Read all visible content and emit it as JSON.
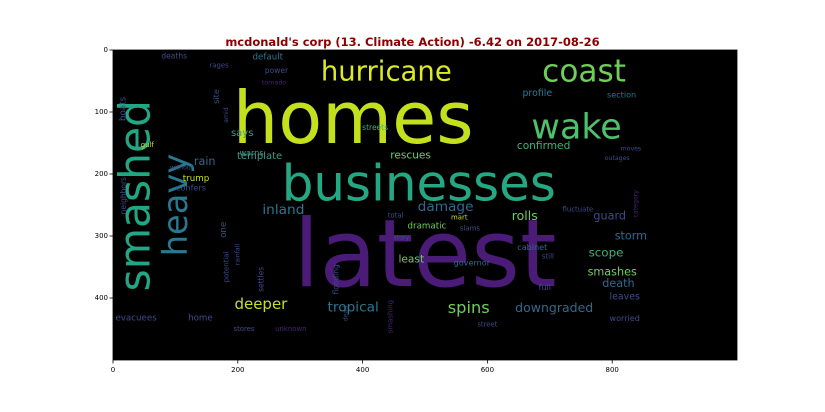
{
  "chart_data": {
    "type": "wordcloud",
    "title": "mcdonald's corp (13. Climate Action) -6.42 on 2017-08-26",
    "xlim": [
      0,
      1000
    ],
    "ylim": [
      500,
      0
    ],
    "xticks": [
      0,
      200,
      400,
      600,
      800
    ],
    "yticks": [
      0,
      100,
      200,
      300,
      400
    ],
    "words": [
      {
        "text": "latest",
        "x": 500,
        "y": 330,
        "size": 150,
        "color": "#4b1c77",
        "rotate": 0
      },
      {
        "text": "homes",
        "x": 385,
        "y": 110,
        "size": 115,
        "color": "#c4e01c",
        "rotate": 0
      },
      {
        "text": "businesses",
        "x": 490,
        "y": 215,
        "size": 80,
        "color": "#24a884",
        "rotate": 0
      },
      {
        "text": "smashed",
        "x": 35,
        "y": 235,
        "size": 68,
        "color": "#22a784",
        "rotate": -90
      },
      {
        "text": "heavy",
        "x": 100,
        "y": 250,
        "size": 54,
        "color": "#2a788e",
        "rotate": -90
      },
      {
        "text": "wake",
        "x": 743,
        "y": 125,
        "size": 56,
        "color": "#4cc26c",
        "rotate": 0
      },
      {
        "text": "coast",
        "x": 755,
        "y": 35,
        "size": 50,
        "color": "#6ece58",
        "rotate": 0
      },
      {
        "text": "hurricane",
        "x": 438,
        "y": 35,
        "size": 44,
        "color": "#ddea21",
        "rotate": 0
      },
      {
        "text": "default",
        "x": 248,
        "y": 12,
        "size": 14,
        "color": "#2a788e",
        "rotate": 0
      },
      {
        "text": "deaths",
        "x": 98,
        "y": 10,
        "size": 12,
        "color": "#3d4d8a",
        "rotate": 0
      },
      {
        "text": "rages",
        "x": 170,
        "y": 25,
        "size": 11,
        "color": "#3d4d8a",
        "rotate": 0
      },
      {
        "text": "power",
        "x": 262,
        "y": 33,
        "size": 12,
        "color": "#3d4d8a",
        "rotate": 0
      },
      {
        "text": "tornado",
        "x": 258,
        "y": 53,
        "size": 10,
        "color": "#482475",
        "rotate": 0
      },
      {
        "text": "site",
        "x": 165,
        "y": 75,
        "size": 13,
        "color": "#3d4d8a",
        "rotate": -90
      },
      {
        "text": "amid",
        "x": 182,
        "y": 105,
        "size": 10,
        "color": "#3d4d8a",
        "rotate": -90
      },
      {
        "text": "boats",
        "x": 17,
        "y": 95,
        "size": 14,
        "color": "#3d4d8a",
        "rotate": -90
      },
      {
        "text": "profile",
        "x": 680,
        "y": 70,
        "size": 15,
        "color": "#2a788e",
        "rotate": 0
      },
      {
        "text": "section",
        "x": 815,
        "y": 72,
        "size": 13,
        "color": "#2a788e",
        "rotate": 0
      },
      {
        "text": "says",
        "x": 207,
        "y": 135,
        "size": 16,
        "color": "#3e9b8a",
        "rotate": 0
      },
      {
        "text": "streets",
        "x": 420,
        "y": 125,
        "size": 12,
        "color": "#35b779",
        "rotate": 0
      },
      {
        "text": "gulf",
        "x": 55,
        "y": 153,
        "size": 11,
        "color": "#c4e01c",
        "rotate": 0
      },
      {
        "text": "moves",
        "x": 830,
        "y": 160,
        "size": 10,
        "color": "#3d4d8a",
        "rotate": 0
      },
      {
        "text": "confirmed",
        "x": 690,
        "y": 155,
        "size": 17,
        "color": "#35b779",
        "rotate": 0
      },
      {
        "text": "rescues",
        "x": 477,
        "y": 170,
        "size": 17,
        "color": "#6ece58",
        "rotate": 0
      },
      {
        "text": "rain",
        "x": 147,
        "y": 180,
        "size": 18,
        "color": "#31688e",
        "rotate": 0
      },
      {
        "text": "template",
        "x": 235,
        "y": 172,
        "size": 16,
        "color": "#3e9b8a",
        "rotate": 0
      },
      {
        "text": "warns",
        "x": 222,
        "y": 165,
        "size": 13,
        "color": "#3e9b8a",
        "rotate": 0
      },
      {
        "text": "outages",
        "x": 808,
        "y": 175,
        "size": 10,
        "color": "#3d4d8a",
        "rotate": 0
      },
      {
        "text": "without",
        "x": 110,
        "y": 190,
        "size": 10,
        "color": "#3d4d8a",
        "rotate": 0
      },
      {
        "text": "trump",
        "x": 133,
        "y": 208,
        "size": 14,
        "color": "#c4e01c",
        "rotate": 0
      },
      {
        "text": "neighbors",
        "x": 17,
        "y": 235,
        "size": 12,
        "color": "#3d4d8a",
        "rotate": -90
      },
      {
        "text": "confers",
        "x": 125,
        "y": 222,
        "size": 13,
        "color": "#3d4d8a",
        "rotate": 0
      },
      {
        "text": "category",
        "x": 838,
        "y": 248,
        "size": 10,
        "color": "#482475",
        "rotate": -90
      },
      {
        "text": "inland",
        "x": 273,
        "y": 258,
        "size": 22,
        "color": "#2a788e",
        "rotate": 0
      },
      {
        "text": "damage",
        "x": 533,
        "y": 253,
        "size": 22,
        "color": "#31688e",
        "rotate": 0
      },
      {
        "text": "rolls",
        "x": 660,
        "y": 267,
        "size": 20,
        "color": "#6ece58",
        "rotate": 0
      },
      {
        "text": "guard",
        "x": 796,
        "y": 268,
        "size": 18,
        "color": "#3d4d8a",
        "rotate": 0
      },
      {
        "text": "fluctuate",
        "x": 745,
        "y": 257,
        "size": 11,
        "color": "#3d4d8a",
        "rotate": 0
      },
      {
        "text": "one",
        "x": 178,
        "y": 290,
        "size": 14,
        "color": "#3d4d8a",
        "rotate": -90
      },
      {
        "text": "total",
        "x": 453,
        "y": 267,
        "size": 11,
        "color": "#3d4d8a",
        "rotate": 0
      },
      {
        "text": "mart",
        "x": 555,
        "y": 270,
        "size": 11,
        "color": "#c4e01c",
        "rotate": 0
      },
      {
        "text": "dramatic",
        "x": 503,
        "y": 285,
        "size": 14,
        "color": "#6ece58",
        "rotate": 0
      },
      {
        "text": "slams",
        "x": 572,
        "y": 288,
        "size": 11,
        "color": "#3d4d8a",
        "rotate": 0
      },
      {
        "text": "storm",
        "x": 830,
        "y": 300,
        "size": 18,
        "color": "#31688e",
        "rotate": 0
      },
      {
        "text": "rainfall",
        "x": 200,
        "y": 330,
        "size": 10,
        "color": "#3d4d8a",
        "rotate": -90
      },
      {
        "text": "potential",
        "x": 182,
        "y": 350,
        "size": 11,
        "color": "#3d4d8a",
        "rotate": -90
      },
      {
        "text": "settles",
        "x": 237,
        "y": 370,
        "size": 12,
        "color": "#3d4d8a",
        "rotate": -90
      },
      {
        "text": "flooding",
        "x": 357,
        "y": 370,
        "size": 12,
        "color": "#3d4d8a",
        "rotate": -90
      },
      {
        "text": "story",
        "x": 462,
        "y": 303,
        "size": 10,
        "color": "#3d4d8a",
        "rotate": 0
      },
      {
        "text": "scope",
        "x": 790,
        "y": 327,
        "size": 19,
        "color": "#35b779",
        "rotate": 0
      },
      {
        "text": "cabinet",
        "x": 672,
        "y": 318,
        "size": 13,
        "color": "#31688e",
        "rotate": 0
      },
      {
        "text": "still",
        "x": 697,
        "y": 333,
        "size": 11,
        "color": "#3d4d8a",
        "rotate": 0
      },
      {
        "text": "least",
        "x": 478,
        "y": 338,
        "size": 17,
        "color": "#6ece58",
        "rotate": 0
      },
      {
        "text": "governor",
        "x": 575,
        "y": 343,
        "size": 13,
        "color": "#31688e",
        "rotate": 0
      },
      {
        "text": "dead",
        "x": 373,
        "y": 425,
        "size": 10,
        "color": "#3d4d8a",
        "rotate": -90
      },
      {
        "text": "smashes",
        "x": 800,
        "y": 358,
        "size": 18,
        "color": "#6ece58",
        "rotate": 0
      },
      {
        "text": "death",
        "x": 810,
        "y": 377,
        "size": 18,
        "color": "#31688e",
        "rotate": 0
      },
      {
        "text": "full",
        "x": 692,
        "y": 382,
        "size": 13,
        "color": "#3d4d8a",
        "rotate": 0
      },
      {
        "text": "deeper",
        "x": 237,
        "y": 410,
        "size": 24,
        "color": "#c4e01c",
        "rotate": 0
      },
      {
        "text": "tropical",
        "x": 385,
        "y": 415,
        "size": 22,
        "color": "#2a788e",
        "rotate": 0
      },
      {
        "text": "spins",
        "x": 570,
        "y": 415,
        "size": 26,
        "color": "#6ece58",
        "rotate": 0
      },
      {
        "text": "downgraded",
        "x": 707,
        "y": 415,
        "size": 20,
        "color": "#31688e",
        "rotate": 0
      },
      {
        "text": "leaves",
        "x": 820,
        "y": 398,
        "size": 15,
        "color": "#3d4d8a",
        "rotate": 0
      },
      {
        "text": "smashing",
        "x": 445,
        "y": 430,
        "size": 11,
        "color": "#482475",
        "rotate": -90
      },
      {
        "text": "evacuees",
        "x": 37,
        "y": 433,
        "size": 14,
        "color": "#3d4d8a",
        "rotate": 0
      },
      {
        "text": "home",
        "x": 140,
        "y": 433,
        "size": 14,
        "color": "#3d4d8a",
        "rotate": 0
      },
      {
        "text": "worried",
        "x": 820,
        "y": 432,
        "size": 13,
        "color": "#3d4d8a",
        "rotate": 0
      },
      {
        "text": "street",
        "x": 600,
        "y": 443,
        "size": 11,
        "color": "#3d4d8a",
        "rotate": 0
      },
      {
        "text": "stores",
        "x": 210,
        "y": 450,
        "size": 11,
        "color": "#3d4d8a",
        "rotate": 0
      },
      {
        "text": "unknown",
        "x": 285,
        "y": 450,
        "size": 11,
        "color": "#482475",
        "rotate": 0
      }
    ]
  }
}
